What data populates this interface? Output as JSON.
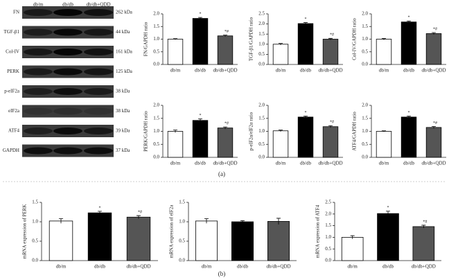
{
  "blot": {
    "lanes": [
      "db/m",
      "db/db",
      "db/db+QDD"
    ],
    "rows": [
      {
        "protein": "FN",
        "size": "262 kDa"
      },
      {
        "protein": "TGF-β1",
        "size": "44 kDa"
      },
      {
        "protein": "Col-IV",
        "size": "161 kDa"
      },
      {
        "protein": "PERK",
        "size": "125 kDa"
      },
      {
        "protein": "p-eIF2a",
        "size": "38 kDa"
      },
      {
        "protein": "eIF2a",
        "size": "38 kDa"
      },
      {
        "protein": "ATF4",
        "size": "39 kDa"
      },
      {
        "protein": "GAPDH",
        "size": "37 kDa"
      }
    ]
  },
  "panel_labels": [
    "(a)",
    "(b)"
  ],
  "chart_data": [
    {
      "type": "bar",
      "ylabel": "FN/GAPDH ratio",
      "categories": [
        "db/m",
        "db/db",
        "db/db+QDD"
      ],
      "colors": [
        "#ffffff",
        "#000000",
        "#555555"
      ],
      "values": [
        1.0,
        1.82,
        1.13
      ],
      "errors": [
        0.02,
        0.04,
        0.03
      ],
      "significance": [
        null,
        "*",
        "*#"
      ],
      "ylim": [
        0,
        2.0
      ],
      "yticks": [
        {
          "value": 0,
          "label": "0.0"
        },
        {
          "value": 0.5,
          "label": "0.5"
        },
        {
          "value": 1,
          "label": "1.0"
        },
        {
          "value": 1.5,
          "label": "1.5"
        },
        {
          "value": 2,
          "label": "2.0"
        }
      ]
    },
    {
      "type": "bar",
      "ylabel": "TGF-β1/GAPDH ratio",
      "categories": [
        "db/m",
        "db/db",
        "db/db+QDD"
      ],
      "colors": [
        "#ffffff",
        "#000000",
        "#555555"
      ],
      "values": [
        1.0,
        2.02,
        1.25
      ],
      "errors": [
        0.04,
        0.05,
        0.04
      ],
      "significance": [
        null,
        "*",
        "*#"
      ],
      "ylim": [
        0,
        2.5
      ],
      "yticks": [
        {
          "value": 0,
          "label": "0.0"
        },
        {
          "value": 0.5,
          "label": "0.5"
        },
        {
          "value": 1,
          "label": "1.0"
        },
        {
          "value": 1.5,
          "label": "1.5"
        },
        {
          "value": 2,
          "label": "2.0"
        },
        {
          "value": 2.5,
          "label": "2.5"
        }
      ]
    },
    {
      "type": "bar",
      "ylabel": "Col-IV/GAPDH ratio",
      "categories": [
        "db/m",
        "db/db",
        "db/db+QDD"
      ],
      "colors": [
        "#ffffff",
        "#000000",
        "#555555"
      ],
      "values": [
        1.0,
        1.68,
        1.22
      ],
      "errors": [
        0.03,
        0.04,
        0.04
      ],
      "significance": [
        null,
        "*",
        "*#"
      ],
      "ylim": [
        0,
        2.0
      ],
      "yticks": [
        {
          "value": 0,
          "label": "0.0"
        },
        {
          "value": 0.5,
          "label": "0.5"
        },
        {
          "value": 1,
          "label": "1.0"
        },
        {
          "value": 1.5,
          "label": "1.5"
        },
        {
          "value": 2,
          "label": "2.0"
        }
      ]
    },
    {
      "type": "bar",
      "ylabel": "PERK/GAPDH ratio",
      "categories": [
        "db/m",
        "db/db",
        "db/db+QDD"
      ],
      "colors": [
        "#ffffff",
        "#000000",
        "#555555"
      ],
      "values": [
        1.0,
        1.42,
        1.13
      ],
      "errors": [
        0.05,
        0.06,
        0.04
      ],
      "significance": [
        null,
        "*",
        "*#"
      ],
      "ylim": [
        0,
        2.0
      ],
      "yticks": [
        {
          "value": 0,
          "label": "0.0"
        },
        {
          "value": 0.5,
          "label": "0.5"
        },
        {
          "value": 1,
          "label": "1.0"
        },
        {
          "value": 1.5,
          "label": "1.5"
        },
        {
          "value": 2,
          "label": "2.0"
        }
      ]
    },
    {
      "type": "bar",
      "ylabel": "p-eIF2α/eIF2α ratio",
      "categories": [
        "db/m",
        "db/db",
        "db/db+QDD"
      ],
      "colors": [
        "#ffffff",
        "#000000",
        "#555555"
      ],
      "values": [
        1.02,
        1.55,
        1.18
      ],
      "errors": [
        0.03,
        0.04,
        0.04
      ],
      "significance": [
        null,
        "*",
        "*#"
      ],
      "ylim": [
        0,
        2.0
      ],
      "yticks": [
        {
          "value": 0,
          "label": "0.0"
        },
        {
          "value": 0.5,
          "label": "0.5"
        },
        {
          "value": 1,
          "label": "1.0"
        },
        {
          "value": 1.5,
          "label": "1.5"
        },
        {
          "value": 2,
          "label": "2.0"
        }
      ]
    },
    {
      "type": "bar",
      "ylabel": "ATF4/GAPDH ratio",
      "categories": [
        "db/m",
        "db/db",
        "db/db+QDD"
      ],
      "colors": [
        "#ffffff",
        "#000000",
        "#555555"
      ],
      "values": [
        1.0,
        1.55,
        1.15
      ],
      "errors": [
        0.02,
        0.04,
        0.04
      ],
      "significance": [
        null,
        "*",
        "*#"
      ],
      "ylim": [
        0,
        2.0
      ],
      "yticks": [
        {
          "value": 0,
          "label": "0.0"
        },
        {
          "value": 0.5,
          "label": "0.5"
        },
        {
          "value": 1,
          "label": "1.0"
        },
        {
          "value": 1.5,
          "label": "1.5"
        },
        {
          "value": 2,
          "label": "2.0"
        }
      ]
    },
    {
      "type": "bar",
      "ylabel": "mRNA expression of PERK",
      "categories": [
        "db/m",
        "db/db",
        "db/db+QDD"
      ],
      "colors": [
        "#ffffff",
        "#000000",
        "#555555"
      ],
      "values": [
        1.02,
        1.23,
        1.12
      ],
      "errors": [
        0.06,
        0.04,
        0.04
      ],
      "significance": [
        null,
        "*",
        "*#"
      ],
      "ylim": [
        0,
        1.5
      ],
      "yticks": [
        {
          "value": 0,
          "label": "0.0"
        },
        {
          "value": 0.5,
          "label": "0.5"
        },
        {
          "value": 1,
          "label": "1.0"
        },
        {
          "value": 1.5,
          "label": "1.5"
        }
      ]
    },
    {
      "type": "bar",
      "ylabel": "mRNA expression of eIF2a",
      "categories": [
        "db/m",
        "db/db",
        "db/db+QDD"
      ],
      "colors": [
        "#ffffff",
        "#000000",
        "#555555"
      ],
      "values": [
        1.02,
        1.0,
        1.01
      ],
      "errors": [
        0.06,
        0.03,
        0.08
      ],
      "significance": [
        null,
        null,
        null
      ],
      "ylim": [
        0,
        1.5
      ],
      "yticks": [
        {
          "value": 0,
          "label": "0.0"
        },
        {
          "value": 0.5,
          "label": "0.5"
        },
        {
          "value": 1,
          "label": "1.0"
        },
        {
          "value": 1.5,
          "label": "1.5"
        }
      ]
    },
    {
      "type": "bar",
      "ylabel": "mRNA expression of ATF4",
      "categories": [
        "db/m",
        "db/db",
        "db/db+QDD"
      ],
      "colors": [
        "#ffffff",
        "#000000",
        "#555555"
      ],
      "values": [
        1.0,
        2.02,
        1.46
      ],
      "errors": [
        0.07,
        0.1,
        0.06
      ],
      "significance": [
        null,
        "*",
        "*#"
      ],
      "ylim": [
        0,
        2.5
      ],
      "yticks": [
        {
          "value": 0,
          "label": "0.0"
        },
        {
          "value": 0.5,
          "label": "0.5"
        },
        {
          "value": 1,
          "label": "1.0"
        },
        {
          "value": 1.5,
          "label": "1.5"
        },
        {
          "value": 2,
          "label": "2.0"
        },
        {
          "value": 2.5,
          "label": "2.5"
        }
      ]
    }
  ]
}
